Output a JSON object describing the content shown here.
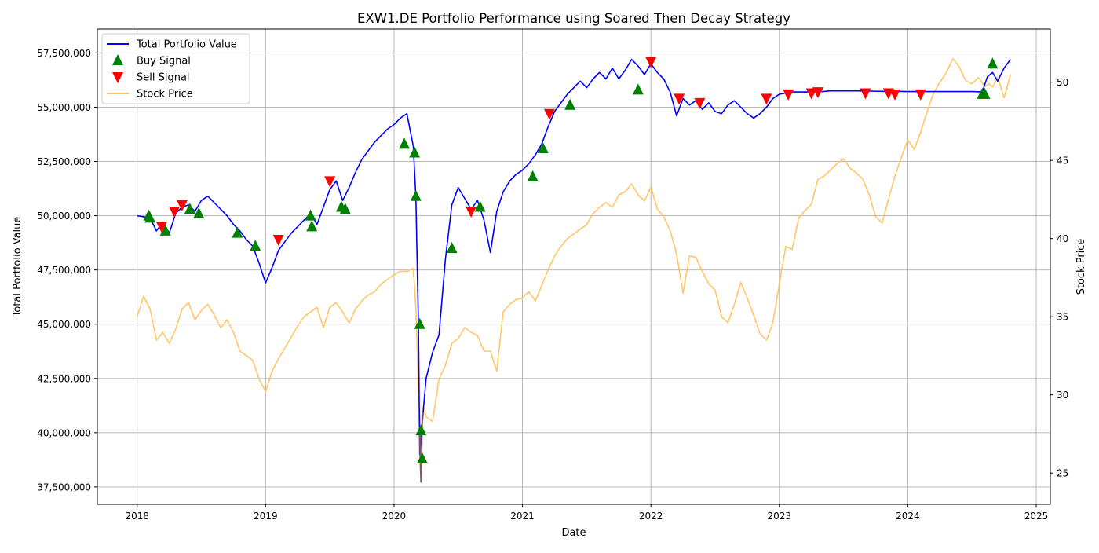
{
  "chart_data": {
    "type": "line",
    "title": "EXW1.DE Portfolio Performance using Soared Then Decay Strategy",
    "xlabel": "Date",
    "ylabel": "Total Portfolio Value",
    "y2label": "Stock Price",
    "grid": true,
    "legend_position": "top-left",
    "xlim": [
      2017.69,
      2025.11
    ],
    "ylim": [
      36700000,
      58600000
    ],
    "y2lim": [
      23.0,
      53.4
    ],
    "x_ticks": [
      2018,
      2019,
      2020,
      2021,
      2022,
      2023,
      2024,
      2025
    ],
    "x_tick_labels": [
      "2018",
      "2019",
      "2020",
      "2021",
      "2022",
      "2023",
      "2024",
      "2025"
    ],
    "y_ticks": [
      37500000,
      40000000,
      42500000,
      45000000,
      47500000,
      50000000,
      52500000,
      55000000,
      57500000
    ],
    "y_tick_labels": [
      "37,500,000",
      "40,000,000",
      "42,500,000",
      "45,000,000",
      "47,500,000",
      "50,000,000",
      "52,500,000",
      "55,000,000",
      "57,500,000"
    ],
    "y2_ticks": [
      25,
      30,
      35,
      40,
      45,
      50
    ],
    "y2_tick_labels": [
      "25",
      "30",
      "35",
      "40",
      "45",
      "50"
    ],
    "series": [
      {
        "name": "Total Portfolio Value",
        "color": "#0000ff",
        "axis": "left",
        "x": [
          2018.0,
          2018.1,
          2018.15,
          2018.2,
          2018.25,
          2018.3,
          2018.35,
          2018.4,
          2018.45,
          2018.5,
          2018.55,
          2018.6,
          2018.65,
          2018.7,
          2018.75,
          2018.8,
          2018.85,
          2018.9,
          2018.95,
          2019.0,
          2019.05,
          2019.1,
          2019.2,
          2019.3,
          2019.35,
          2019.4,
          2019.45,
          2019.5,
          2019.55,
          2019.6,
          2019.65,
          2019.7,
          2019.75,
          2019.8,
          2019.85,
          2019.9,
          2019.95,
          2020.0,
          2020.05,
          2020.1,
          2020.15,
          2020.17,
          2020.19,
          2020.2,
          2020.22,
          2020.25,
          2020.3,
          2020.35,
          2020.4,
          2020.45,
          2020.5,
          2020.55,
          2020.6,
          2020.65,
          2020.7,
          2020.75,
          2020.8,
          2020.85,
          2020.9,
          2020.95,
          2021.0,
          2021.05,
          2021.1,
          2021.15,
          2021.2,
          2021.25,
          2021.3,
          2021.35,
          2021.4,
          2021.45,
          2021.5,
          2021.55,
          2021.6,
          2021.65,
          2021.7,
          2021.75,
          2021.8,
          2021.85,
          2021.9,
          2021.95,
          2022.0,
          2022.05,
          2022.1,
          2022.15,
          2022.2,
          2022.25,
          2022.3,
          2022.35,
          2022.4,
          2022.45,
          2022.5,
          2022.55,
          2022.6,
          2022.65,
          2022.7,
          2022.75,
          2022.8,
          2022.85,
          2022.9,
          2022.95,
          2023.0,
          2023.1,
          2023.2,
          2023.3,
          2023.4,
          2023.5,
          2023.6,
          2023.7,
          2023.8,
          2023.9,
          2024.0,
          2024.1,
          2024.2,
          2024.3,
          2024.4,
          2024.5,
          2024.58,
          2024.62,
          2024.66,
          2024.7,
          2024.75,
          2024.8
        ],
        "values": [
          50000000,
          49900000,
          49300000,
          49700000,
          49200000,
          50100000,
          50400000,
          50500000,
          50200000,
          50700000,
          50900000,
          50600000,
          50300000,
          50000000,
          49600000,
          49300000,
          48900000,
          48600000,
          47800000,
          46900000,
          47600000,
          48400000,
          49200000,
          49800000,
          50100000,
          49600000,
          50400000,
          51200000,
          51600000,
          50700000,
          51300000,
          52000000,
          52600000,
          53000000,
          53400000,
          53700000,
          54000000,
          54200000,
          54500000,
          54700000,
          53200000,
          50800000,
          45000000,
          39000000,
          40500000,
          42500000,
          43700000,
          44500000,
          48000000,
          50500000,
          51300000,
          50800000,
          50300000,
          50700000,
          49800000,
          48300000,
          50200000,
          51100000,
          51600000,
          51900000,
          52100000,
          52400000,
          52800000,
          53300000,
          54100000,
          54800000,
          55200000,
          55600000,
          55900000,
          56200000,
          55900000,
          56300000,
          56600000,
          56300000,
          56800000,
          56300000,
          56700000,
          57200000,
          56900000,
          56500000,
          57000000,
          56600000,
          56300000,
          55700000,
          54600000,
          55400000,
          55100000,
          55300000,
          54900000,
          55200000,
          54800000,
          54700000,
          55100000,
          55300000,
          55000000,
          54700000,
          54500000,
          54700000,
          55000000,
          55400000,
          55600000,
          55700000,
          55700000,
          55700000,
          55750000,
          55750000,
          55750000,
          55740000,
          55730000,
          55730000,
          55720000,
          55720000,
          55720000,
          55720000,
          55720000,
          55720000,
          55700000,
          56400000,
          56600000,
          56200000,
          56800000,
          57200000
        ]
      },
      {
        "name": "Stock Price",
        "color": "#ffc25f",
        "axis": "right",
        "x": [
          2018.0,
          2018.05,
          2018.1,
          2018.15,
          2018.2,
          2018.25,
          2018.3,
          2018.35,
          2018.4,
          2018.45,
          2018.5,
          2018.55,
          2018.6,
          2018.65,
          2018.7,
          2018.75,
          2018.8,
          2018.85,
          2018.9,
          2018.95,
          2019.0,
          2019.05,
          2019.1,
          2019.15,
          2019.2,
          2019.25,
          2019.3,
          2019.35,
          2019.4,
          2019.45,
          2019.5,
          2019.55,
          2019.6,
          2019.65,
          2019.7,
          2019.75,
          2019.8,
          2019.85,
          2019.9,
          2019.95,
          2020.0,
          2020.05,
          2020.1,
          2020.15,
          2020.17,
          2020.19,
          2020.21,
          2020.23,
          2020.25,
          2020.3,
          2020.35,
          2020.4,
          2020.45,
          2020.5,
          2020.55,
          2020.6,
          2020.65,
          2020.7,
          2020.75,
          2020.8,
          2020.85,
          2020.9,
          2020.95,
          2021.0,
          2021.05,
          2021.1,
          2021.15,
          2021.2,
          2021.25,
          2021.3,
          2021.35,
          2021.4,
          2021.45,
          2021.5,
          2021.55,
          2021.6,
          2021.65,
          2021.7,
          2021.75,
          2021.8,
          2021.85,
          2021.9,
          2021.95,
          2022.0,
          2022.05,
          2022.1,
          2022.15,
          2022.2,
          2022.25,
          2022.3,
          2022.35,
          2022.4,
          2022.45,
          2022.5,
          2022.55,
          2022.6,
          2022.65,
          2022.7,
          2022.75,
          2022.8,
          2022.85,
          2022.9,
          2022.95,
          2023.0,
          2023.05,
          2023.1,
          2023.15,
          2023.2,
          2023.25,
          2023.3,
          2023.35,
          2023.4,
          2023.45,
          2023.5,
          2023.55,
          2023.6,
          2023.65,
          2023.7,
          2023.75,
          2023.8,
          2023.85,
          2023.9,
          2023.95,
          2024.0,
          2024.05,
          2024.1,
          2024.15,
          2024.2,
          2024.25,
          2024.3,
          2024.35,
          2024.4,
          2024.45,
          2024.5,
          2024.55,
          2024.6,
          2024.63,
          2024.66,
          2024.7,
          2024.75,
          2024.8
        ],
        "values": [
          35.0,
          36.3,
          35.5,
          33.5,
          34.0,
          33.3,
          34.2,
          35.5,
          35.9,
          34.8,
          35.4,
          35.8,
          35.1,
          34.3,
          34.8,
          34.0,
          32.8,
          32.5,
          32.2,
          31.0,
          30.2,
          31.5,
          32.3,
          33.0,
          33.7,
          34.4,
          35.0,
          35.3,
          35.6,
          34.3,
          35.6,
          35.9,
          35.3,
          34.6,
          35.5,
          36.0,
          36.4,
          36.6,
          37.1,
          37.4,
          37.7,
          37.9,
          37.9,
          38.1,
          35.5,
          30.5,
          26.6,
          29.2,
          28.6,
          28.3,
          31.0,
          31.9,
          33.3,
          33.6,
          34.3,
          34.0,
          33.8,
          32.8,
          32.8,
          31.5,
          35.3,
          35.8,
          36.1,
          36.2,
          36.6,
          36.0,
          37.0,
          38.0,
          38.9,
          39.5,
          40.0,
          40.3,
          40.6,
          40.9,
          41.6,
          42.0,
          42.3,
          42.0,
          42.8,
          43.0,
          43.5,
          42.8,
          42.4,
          43.3,
          41.9,
          41.4,
          40.5,
          39.0,
          36.5,
          38.9,
          38.8,
          37.9,
          37.1,
          36.7,
          35.0,
          34.6,
          35.8,
          37.2,
          36.2,
          35.1,
          33.9,
          33.5,
          34.6,
          37.1,
          39.5,
          39.3,
          41.3,
          41.8,
          42.2,
          43.8,
          44.0,
          44.4,
          44.8,
          45.1,
          44.5,
          44.2,
          43.8,
          42.8,
          41.4,
          41.0,
          42.5,
          44.0,
          45.2,
          46.3,
          45.7,
          46.8,
          48.1,
          49.3,
          50.0,
          50.6,
          51.5,
          51.0,
          50.1,
          49.9,
          50.3,
          49.7,
          49.9,
          49.7,
          50.3,
          49.0,
          50.5
        ]
      }
    ],
    "crash_segment": {
      "color": "#8b5a5a",
      "x": [
        2020.2,
        2020.205,
        2020.21,
        2020.215,
        2020.22
      ],
      "values": [
        40000000,
        38500000,
        37700000,
        39000000,
        41000000
      ]
    },
    "buy_signals": {
      "name": "Buy Signal",
      "color": "#008000",
      "x": [
        2018.09,
        2018.1,
        2018.22,
        2018.41,
        2018.48,
        2018.78,
        2018.92,
        2019.35,
        2019.36,
        2019.59,
        2019.62,
        2020.08,
        2020.16,
        2020.17,
        2020.2,
        2020.21,
        2020.22,
        2020.45,
        2020.67,
        2021.08,
        2021.16,
        2021.37,
        2021.9,
        2024.58,
        2024.6,
        2024.66
      ],
      "values": [
        50000000,
        49900000,
        49300000,
        50300000,
        50100000,
        49200000,
        48600000,
        50000000,
        49500000,
        50400000,
        50300000,
        53300000,
        52900000,
        50900000,
        45000000,
        40100000,
        38800000,
        48500000,
        50400000,
        51800000,
        53100000,
        55100000,
        55800000,
        55600000,
        55600000,
        57000000
      ]
    },
    "sell_signals": {
      "name": "Sell Signal",
      "color": "#ff0000",
      "x": [
        2018.19,
        2018.29,
        2018.35,
        2019.1,
        2019.5,
        2020.6,
        2021.21,
        2022.0,
        2022.22,
        2022.38,
        2022.9,
        2023.07,
        2023.25,
        2023.3,
        2023.67,
        2023.85,
        2023.9,
        2024.1
      ],
      "values": [
        49500000,
        50200000,
        50500000,
        48900000,
        51600000,
        50200000,
        54700000,
        57100000,
        55400000,
        55200000,
        55400000,
        55600000,
        55650000,
        55700000,
        55650000,
        55650000,
        55600000,
        55600000
      ]
    },
    "legend": [
      {
        "label": "Total Portfolio Value",
        "marker": "line",
        "color": "#0000ff"
      },
      {
        "label": "Buy Signal",
        "marker": "triangle-up",
        "color": "#008000"
      },
      {
        "label": "Sell Signal",
        "marker": "triangle-down",
        "color": "#ff0000"
      },
      {
        "label": "Stock Price",
        "marker": "line",
        "color": "#ffc25f"
      }
    ]
  }
}
